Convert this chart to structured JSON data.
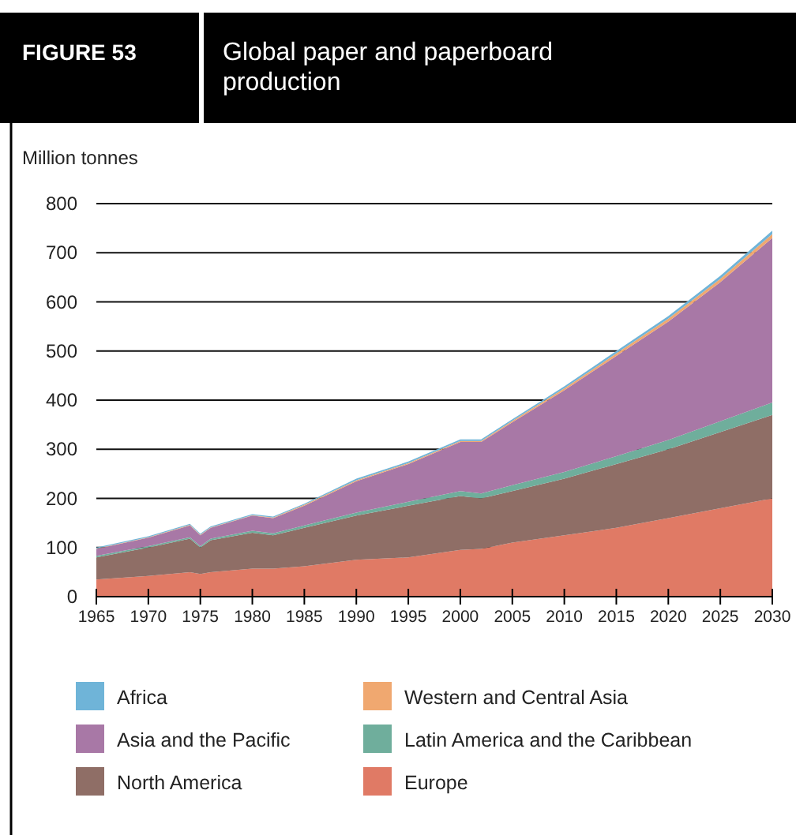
{
  "chart_data": {
    "type": "area",
    "stacked": true,
    "title": "Global paper and paperboard production",
    "annotations": [
      "FIGURE 53"
    ],
    "ylabel": "Million tonnes",
    "x": [
      1965,
      1970,
      1974,
      1975,
      1976,
      1980,
      1982,
      1985,
      1990,
      1995,
      2000,
      2002,
      2005,
      2010,
      2015,
      2020,
      2025,
      2030
    ],
    "series": [
      {
        "name": "Europe",
        "color": "#e07a65",
        "values": [
          35,
          42,
          50,
          46,
          50,
          57,
          57,
          62,
          75,
          80,
          95,
          97,
          110,
          125,
          140,
          160,
          180,
          200
        ]
      },
      {
        "name": "North America",
        "color": "#8f6e66",
        "values": [
          45,
          58,
          68,
          54,
          65,
          73,
          68,
          78,
          90,
          105,
          110,
          103,
          105,
          115,
          130,
          140,
          155,
          170
        ]
      },
      {
        "name": "Latin America and the Caribbean",
        "color": "#6fae9c",
        "values": [
          3,
          3,
          3,
          3,
          3,
          4,
          4,
          5,
          6,
          8,
          10,
          10,
          12,
          14,
          16,
          19,
          22,
          25
        ]
      },
      {
        "name": "Asia and the Pacific",
        "color": "#a878a6",
        "values": [
          14,
          17,
          24,
          22,
          22,
          31,
          31,
          40,
          64,
          77,
          100,
          105,
          128,
          166,
          204,
          241,
          283,
          335
        ]
      },
      {
        "name": "Western and Central Asia",
        "color": "#f0a870",
        "values": [
          1,
          1,
          1,
          1,
          1,
          1,
          1,
          2,
          2,
          2,
          2,
          2,
          3,
          4,
          5,
          6,
          7,
          8
        ]
      },
      {
        "name": "Africa",
        "color": "#6fb4d8",
        "values": [
          2,
          2,
          2,
          2,
          2,
          2,
          2,
          2,
          3,
          3,
          3,
          3,
          3,
          4,
          5,
          5,
          6,
          7
        ]
      }
    ],
    "xlim": [
      1965,
      2030
    ],
    "xticks": [
      1965,
      1970,
      1975,
      1980,
      1985,
      1990,
      1995,
      2000,
      2005,
      2010,
      2015,
      2020,
      2025,
      2030
    ],
    "ylim": [
      0,
      800
    ],
    "yticks": [
      0,
      100,
      200,
      300,
      400,
      500,
      600,
      700,
      800
    ],
    "grid": "y",
    "legend": "bottom"
  }
}
